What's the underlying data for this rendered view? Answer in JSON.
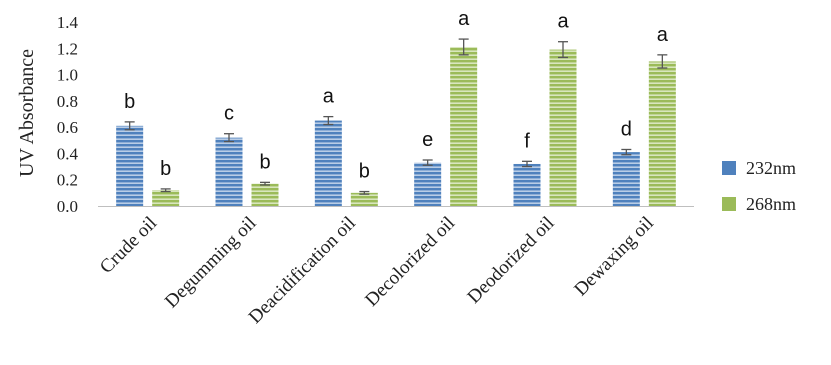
{
  "chart_data": {
    "type": "bar",
    "categories": [
      "Crude oil",
      "Degumming oil",
      "Deacidification oil",
      "Decolorized oil",
      "Deodorized oil",
      "Dewaxing oil"
    ],
    "series": [
      {
        "name": "232nm",
        "color": "#4f81bd",
        "values": [
          0.61,
          0.52,
          0.65,
          0.33,
          0.32,
          0.41
        ],
        "errors": [
          0.03,
          0.03,
          0.03,
          0.02,
          0.02,
          0.02
        ],
        "significance": [
          "b",
          "c",
          "a",
          "e",
          "f",
          "d"
        ]
      },
      {
        "name": "268nm",
        "color": "#9bbb59",
        "values": [
          0.12,
          0.17,
          0.1,
          1.21,
          1.19,
          1.1
        ],
        "errors": [
          0.01,
          0.01,
          0.01,
          0.06,
          0.06,
          0.05
        ],
        "significance": [
          "b",
          "b",
          "b",
          "a",
          "a",
          "a"
        ]
      }
    ],
    "ylabel": "UV Absorbance",
    "xlabel": "",
    "ylim": [
      0,
      1.4
    ],
    "yticks": [
      "0.0",
      "0.2",
      "0.4",
      "0.6",
      "0.8",
      "1.0",
      "1.2",
      "1.4"
    ],
    "grid": false,
    "legend": "right"
  }
}
